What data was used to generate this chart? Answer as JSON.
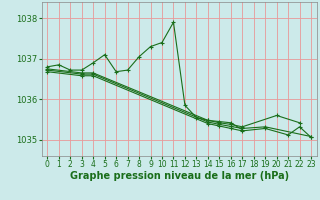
{
  "background_color": "#cceaea",
  "grid_color": "#e89898",
  "line_color": "#1a6e1a",
  "xlabel": "Graphe pression niveau de la mer (hPa)",
  "xlabel_fontsize": 7,
  "ylim": [
    1034.6,
    1038.4
  ],
  "xlim": [
    -0.5,
    23.5
  ],
  "yticks": [
    1035,
    1036,
    1037,
    1038
  ],
  "xticks": [
    0,
    1,
    2,
    3,
    4,
    5,
    6,
    7,
    8,
    9,
    10,
    11,
    12,
    13,
    14,
    15,
    16,
    17,
    18,
    19,
    20,
    21,
    22,
    23
  ],
  "main_x": [
    0,
    1,
    2,
    3,
    4,
    5,
    6,
    7,
    8,
    9,
    10,
    11,
    12,
    13,
    14,
    15,
    16,
    17
  ],
  "main_y": [
    1036.8,
    1036.85,
    1036.72,
    1036.72,
    1036.9,
    1037.1,
    1036.68,
    1036.72,
    1037.05,
    1037.3,
    1037.4,
    1037.9,
    1035.85,
    1035.55,
    1035.48,
    1035.45,
    1035.42,
    1035.25
  ],
  "s2_x": [
    0,
    3,
    4,
    14,
    15,
    16,
    17,
    20,
    22
  ],
  "s2_y": [
    1036.75,
    1036.65,
    1036.65,
    1035.48,
    1035.42,
    1035.38,
    1035.32,
    1035.6,
    1035.42
  ],
  "s3_x": [
    0,
    3,
    4,
    14,
    15,
    16,
    17,
    19,
    23
  ],
  "s3_y": [
    1036.72,
    1036.62,
    1036.62,
    1035.44,
    1035.38,
    1035.33,
    1035.28,
    1035.32,
    1035.08
  ],
  "s4_x": [
    0,
    3,
    4,
    14,
    15,
    16,
    17,
    19,
    21,
    22,
    23
  ],
  "s4_y": [
    1036.68,
    1036.58,
    1036.58,
    1035.4,
    1035.34,
    1035.28,
    1035.22,
    1035.28,
    1035.12,
    1035.32,
    1035.06
  ],
  "tick_fontsize": 6,
  "tick_color": "#1a6e1a"
}
